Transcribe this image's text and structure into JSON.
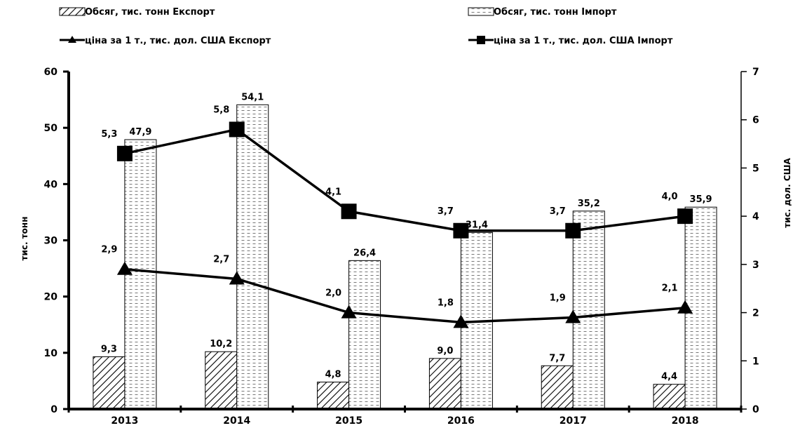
{
  "chart_data": {
    "type": "bar+line",
    "categories": [
      "2013",
      "2014",
      "2015",
      "2016",
      "2017",
      "2018"
    ],
    "bar_series": [
      {
        "name": "Обсяг, тис. тонн Експорт",
        "values": [
          9.3,
          10.2,
          4.8,
          9.0,
          7.7,
          4.4
        ],
        "labels": [
          "9,3",
          "10,2",
          "4,8",
          "9,0",
          "7,7",
          "4,4"
        ],
        "fill": "diagonal-hatch"
      },
      {
        "name": "Обсяг, тис. тонн Імпорт",
        "values": [
          47.9,
          54.1,
          26.4,
          31.4,
          35.2,
          35.9
        ],
        "labels": [
          "47,9",
          "54,1",
          "26,4",
          "31,4",
          "35,2",
          "35,9"
        ],
        "fill": "dashed-horizontal"
      }
    ],
    "line_series": [
      {
        "name": "ціна за 1 т., тис. дол. США Експорт",
        "values": [
          2.9,
          2.7,
          2.0,
          1.8,
          1.9,
          2.1
        ],
        "labels": [
          "2,9",
          "2,7",
          "2,0",
          "1,8",
          "1,9",
          "2,1"
        ],
        "marker": "triangle",
        "axis": "right"
      },
      {
        "name": "ціна за 1 т., тис. дол. США Імпорт",
        "values": [
          5.3,
          5.8,
          4.1,
          3.7,
          3.7,
          4.0
        ],
        "labels": [
          "5,3",
          "5,8",
          "4,1",
          "3,7",
          "3,7",
          "4,0"
        ],
        "marker": "square",
        "axis": "right"
      }
    ],
    "ylabel_left": "тис. тонн",
    "ylabel_right": "тис. дол. США",
    "ylim_left": [
      0,
      60
    ],
    "ylim_right": [
      0,
      7
    ],
    "yticks_left": [
      "0",
      "10",
      "20",
      "30",
      "40",
      "50",
      "60"
    ],
    "yticks_right": [
      "0",
      "1",
      "2",
      "3",
      "4",
      "5",
      "6",
      "7"
    ],
    "grid": false,
    "legend_position": "top"
  }
}
